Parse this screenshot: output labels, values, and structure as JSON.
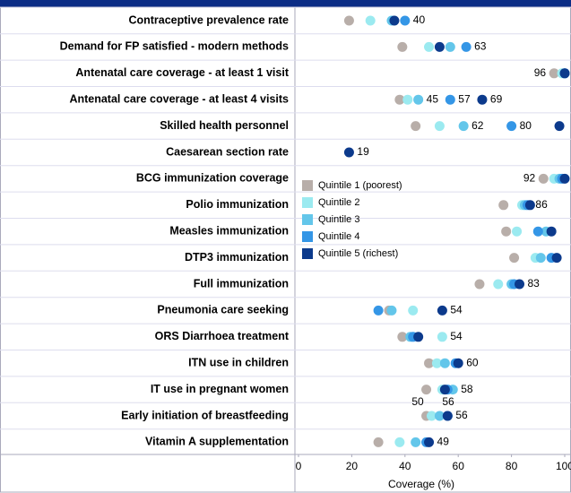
{
  "chart_data": {
    "type": "dot",
    "categories": [
      "Contraceptive prevalence rate",
      "Demand for FP satisfied - modern methods",
      "Antenatal care coverage - at least 1 visit",
      "Antenatal care coverage - at least 4 visits",
      "Skilled health personnel",
      "Caesarean section rate",
      "BCG immunization coverage",
      "Polio immunization",
      "Measles immunization",
      "DTP3 immunization",
      "Full immunization",
      "Pneumonia care seeking",
      "ORS Diarrhoea treatment",
      "ITN use in children",
      "IT use in pregnant women",
      "Early initiation of breastfeeding",
      "Vitamin A supplementation"
    ],
    "series": [
      {
        "name": "Quintile 1 (poorest)",
        "color": "#b8aea9",
        "values": [
          19,
          39,
          96,
          38,
          44,
          null,
          92,
          77,
          78,
          81,
          68,
          34,
          39,
          49,
          48,
          48,
          30
        ],
        "value_labels": [
          null,
          null,
          "96",
          null,
          null,
          null,
          "92",
          null,
          null,
          null,
          null,
          null,
          null,
          null,
          null,
          null,
          null
        ]
      },
      {
        "name": "Quintile 2",
        "color": "#9beaf0",
        "values": [
          27,
          49,
          99,
          41,
          53,
          null,
          96,
          84,
          82,
          89,
          75,
          43,
          54,
          52,
          54,
          50,
          38
        ],
        "value_labels": [
          null,
          null,
          null,
          null,
          null,
          null,
          null,
          null,
          null,
          null,
          null,
          null,
          "54",
          null,
          null,
          null,
          null
        ]
      },
      {
        "name": "Quintile 3",
        "color": "#63c6ea",
        "values": [
          35,
          57,
          100,
          45,
          62,
          null,
          98,
          85,
          93,
          91,
          80,
          35,
          42,
          55,
          58,
          53,
          44
        ],
        "value_labels": [
          null,
          null,
          null,
          "45",
          "62",
          null,
          null,
          null,
          null,
          null,
          null,
          null,
          null,
          null,
          "58",
          null,
          null
        ]
      },
      {
        "name": "Quintile 4",
        "color": "#3496e6",
        "values": [
          40,
          63,
          100,
          57,
          80,
          null,
          99,
          86,
          90,
          95,
          81,
          30,
          43,
          59,
          56,
          56,
          48
        ],
        "value_labels": [
          "40",
          "63",
          null,
          "57",
          "80",
          null,
          null,
          "86",
          null,
          null,
          null,
          null,
          null,
          null,
          null,
          "56",
          null
        ]
      },
      {
        "name": "Quintile 5 (richest)",
        "color": "#0c3a8c",
        "values": [
          36,
          53,
          100,
          69,
          98,
          19,
          100,
          87,
          95,
          97,
          83,
          54,
          45,
          60,
          55,
          56,
          49
        ],
        "value_labels": [
          null,
          null,
          null,
          "69",
          null,
          "19",
          null,
          null,
          null,
          null,
          "83",
          "54",
          null,
          "60",
          null,
          null,
          "49"
        ]
      }
    ],
    "annotations": [
      "50",
      "56"
    ],
    "xlabel": "Coverage (%)",
    "xlim": [
      0,
      100
    ],
    "xticks": [
      0,
      20,
      40,
      60,
      80,
      100
    ]
  }
}
